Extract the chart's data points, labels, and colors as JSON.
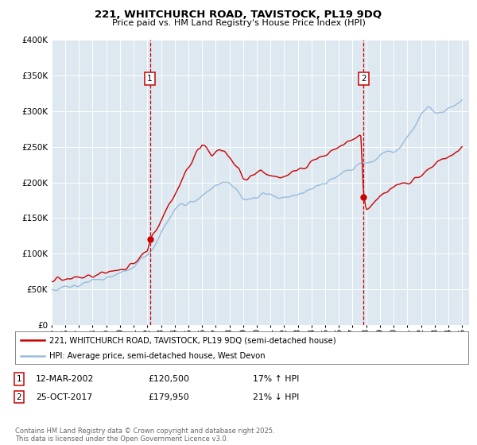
{
  "title_line1": "221, WHITCHURCH ROAD, TAVISTOCK, PL19 9DQ",
  "title_line2": "Price paid vs. HM Land Registry's House Price Index (HPI)",
  "legend_label_red": "221, WHITCHURCH ROAD, TAVISTOCK, PL19 9DQ (semi-detached house)",
  "legend_label_blue": "HPI: Average price, semi-detached house, West Devon",
  "annotation1_date": "12-MAR-2002",
  "annotation1_price": "£120,500",
  "annotation1_hpi": "17% ↑ HPI",
  "annotation2_date": "25-OCT-2017",
  "annotation2_price": "£179,950",
  "annotation2_hpi": "21% ↓ HPI",
  "footnote": "Contains HM Land Registry data © Crown copyright and database right 2025.\nThis data is licensed under the Open Government Licence v3.0.",
  "color_red": "#cc0000",
  "color_blue": "#99bbdd",
  "color_vline": "#cc0000",
  "bg_color": "#dde8f0",
  "ylim": [
    0,
    400000
  ],
  "yticks": [
    0,
    50000,
    100000,
    150000,
    200000,
    250000,
    300000,
    350000,
    400000
  ],
  "xmin": 1995.0,
  "xmax": 2025.5,
  "marker1_x": 2002.19,
  "marker1_y": 120500,
  "marker2_x": 2017.81,
  "marker2_y": 179950,
  "vline1_x": 2002.19,
  "vline2_x": 2017.81,
  "blue_anchors": [
    [
      1995.0,
      50000
    ],
    [
      1996.0,
      53000
    ],
    [
      1997.0,
      57000
    ],
    [
      1998.0,
      61000
    ],
    [
      1999.0,
      66000
    ],
    [
      2000.0,
      72000
    ],
    [
      2001.0,
      82000
    ],
    [
      2002.0,
      96000
    ],
    [
      2002.5,
      110000
    ],
    [
      2003.0,
      130000
    ],
    [
      2003.5,
      148000
    ],
    [
      2004.0,
      162000
    ],
    [
      2004.5,
      170000
    ],
    [
      2005.0,
      172000
    ],
    [
      2005.5,
      175000
    ],
    [
      2006.0,
      182000
    ],
    [
      2006.5,
      188000
    ],
    [
      2007.0,
      196000
    ],
    [
      2007.5,
      200000
    ],
    [
      2008.0,
      198000
    ],
    [
      2008.5,
      190000
    ],
    [
      2009.0,
      178000
    ],
    [
      2009.5,
      175000
    ],
    [
      2010.0,
      180000
    ],
    [
      2010.5,
      185000
    ],
    [
      2011.0,
      182000
    ],
    [
      2011.5,
      179000
    ],
    [
      2012.0,
      178000
    ],
    [
      2012.5,
      180000
    ],
    [
      2013.0,
      183000
    ],
    [
      2013.5,
      187000
    ],
    [
      2014.0,
      192000
    ],
    [
      2014.5,
      196000
    ],
    [
      2015.0,
      200000
    ],
    [
      2015.5,
      205000
    ],
    [
      2016.0,
      210000
    ],
    [
      2016.5,
      215000
    ],
    [
      2017.0,
      220000
    ],
    [
      2017.5,
      225000
    ],
    [
      2018.0,
      228000
    ],
    [
      2018.5,
      232000
    ],
    [
      2019.0,
      238000
    ],
    [
      2019.5,
      242000
    ],
    [
      2020.0,
      245000
    ],
    [
      2020.5,
      250000
    ],
    [
      2021.0,
      262000
    ],
    [
      2021.5,
      278000
    ],
    [
      2022.0,
      295000
    ],
    [
      2022.5,
      305000
    ],
    [
      2023.0,
      300000
    ],
    [
      2023.5,
      298000
    ],
    [
      2024.0,
      302000
    ],
    [
      2024.5,
      308000
    ],
    [
      2025.0,
      318000
    ]
  ],
  "red_anchors": [
    [
      1995.0,
      62000
    ],
    [
      1996.0,
      64000
    ],
    [
      1997.0,
      67000
    ],
    [
      1998.0,
      70000
    ],
    [
      1999.0,
      72000
    ],
    [
      2000.0,
      77000
    ],
    [
      2001.0,
      84000
    ],
    [
      2002.0,
      105000
    ],
    [
      2002.19,
      120500
    ],
    [
      2002.5,
      130000
    ],
    [
      2003.0,
      148000
    ],
    [
      2003.5,
      165000
    ],
    [
      2004.0,
      185000
    ],
    [
      2004.5,
      205000
    ],
    [
      2005.0,
      218000
    ],
    [
      2005.3,
      228000
    ],
    [
      2005.7,
      245000
    ],
    [
      2006.0,
      252000
    ],
    [
      2006.3,
      248000
    ],
    [
      2006.7,
      238000
    ],
    [
      2007.0,
      245000
    ],
    [
      2007.3,
      248000
    ],
    [
      2007.7,
      242000
    ],
    [
      2008.0,
      235000
    ],
    [
      2008.3,
      228000
    ],
    [
      2008.7,
      220000
    ],
    [
      2009.0,
      208000
    ],
    [
      2009.3,
      205000
    ],
    [
      2009.7,
      210000
    ],
    [
      2010.0,
      215000
    ],
    [
      2010.3,
      218000
    ],
    [
      2010.7,
      212000
    ],
    [
      2011.0,
      210000
    ],
    [
      2011.3,
      208000
    ],
    [
      2011.7,
      205000
    ],
    [
      2012.0,
      208000
    ],
    [
      2012.3,
      212000
    ],
    [
      2012.7,
      215000
    ],
    [
      2013.0,
      218000
    ],
    [
      2013.3,
      222000
    ],
    [
      2013.7,
      225000
    ],
    [
      2014.0,
      228000
    ],
    [
      2014.3,
      232000
    ],
    [
      2014.7,
      235000
    ],
    [
      2015.0,
      238000
    ],
    [
      2015.3,
      242000
    ],
    [
      2015.7,
      246000
    ],
    [
      2016.0,
      248000
    ],
    [
      2016.3,
      252000
    ],
    [
      2016.7,
      258000
    ],
    [
      2017.0,
      260000
    ],
    [
      2017.3,
      263000
    ],
    [
      2017.6,
      265000
    ],
    [
      2017.81,
      179950
    ],
    [
      2018.0,
      162000
    ],
    [
      2018.3,
      168000
    ],
    [
      2018.7,
      175000
    ],
    [
      2019.0,
      180000
    ],
    [
      2019.3,
      185000
    ],
    [
      2019.7,
      190000
    ],
    [
      2020.0,
      192000
    ],
    [
      2020.3,
      196000
    ],
    [
      2020.7,
      198000
    ],
    [
      2021.0,
      200000
    ],
    [
      2021.3,
      203000
    ],
    [
      2021.7,
      206000
    ],
    [
      2022.0,
      210000
    ],
    [
      2022.3,
      215000
    ],
    [
      2022.7,
      220000
    ],
    [
      2023.0,
      225000
    ],
    [
      2023.3,
      228000
    ],
    [
      2023.7,
      232000
    ],
    [
      2024.0,
      236000
    ],
    [
      2024.3,
      240000
    ],
    [
      2024.7,
      245000
    ],
    [
      2025.0,
      250000
    ]
  ]
}
